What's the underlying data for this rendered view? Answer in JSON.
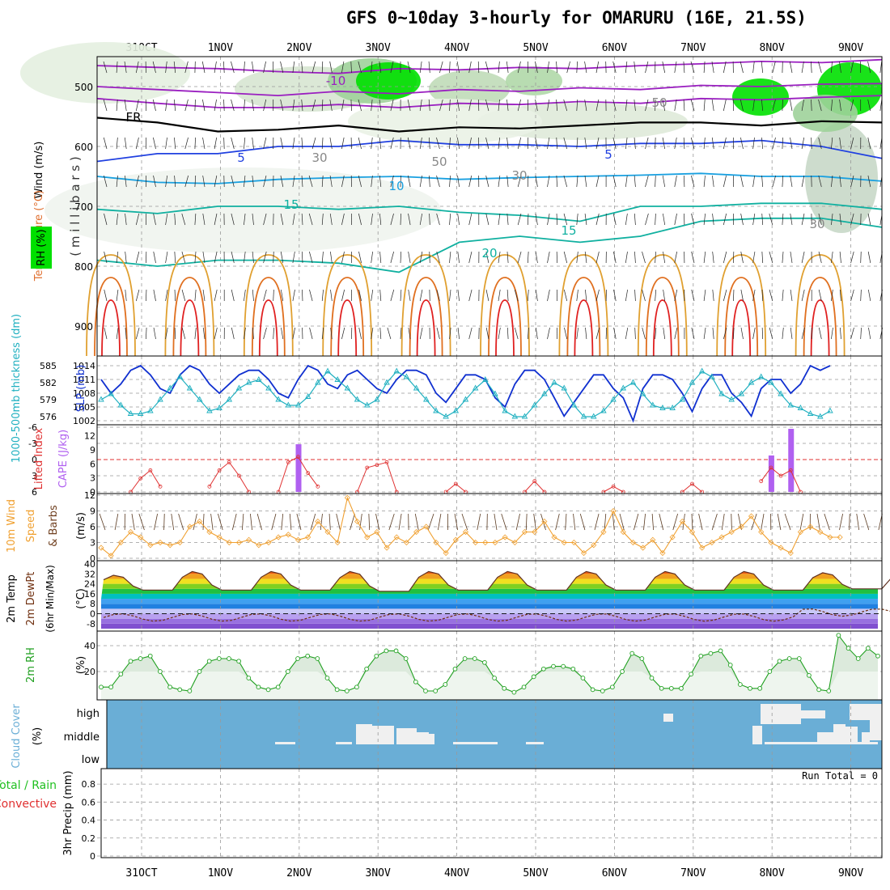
{
  "title": "GFS 0~10day 3-hourly for OMARURU (16E, 21.5S)",
  "x_tick_labels": [
    "31OCT",
    "1NOV",
    "2NOV",
    "3NOV",
    "4NOV",
    "5NOV",
    "6NOV",
    "7NOV",
    "8NOV",
    "9NOV"
  ],
  "colors": {
    "rh_green": "#00e000",
    "temp_purple": "#9a1fc0",
    "temp_blue": "#2040e0",
    "temp_cyan": "#19a0e0",
    "temp_teal": "#10b0a0",
    "temp_orange": "#e0a030",
    "temp_red": "#e02020",
    "slp_blue": "#1030d0",
    "thickness_cyan": "#20b0c0",
    "lifted_index_red": "#e03030",
    "cape_purple": "#b060f0",
    "wind_orange": "#f0a030",
    "dewpt_brown": "#703010",
    "rh_green_line": "#20a020",
    "cloud_blue": "#6aaed6",
    "cloud_white": "#f0f0f0"
  },
  "chart_data": [
    {
      "type": "heatmap",
      "panel": "upper_air",
      "labels": {
        "wind": "Wind (m/s)",
        "temperature": "Temperature (°C)",
        "rh": "RH (%)",
        "ylabel": "( m i l l i b a r s )"
      },
      "y_ticks": [
        500,
        600,
        700,
        800,
        900
      ],
      "ylim": [
        950,
        450
      ],
      "x_days": [
        0,
        1,
        2,
        3,
        4,
        5,
        6,
        7,
        8,
        9
      ],
      "contour_labels": [
        "-10",
        "FR",
        "5",
        "10",
        "15",
        "20",
        "5",
        "15",
        "50",
        "30",
        "30",
        "50",
        "30"
      ],
      "isotherms": [
        {
          "label": "-10",
          "hpa": [
            465,
            468,
            470,
            475,
            478,
            470,
            472,
            468,
            470,
            465,
            462,
            458,
            460,
            455
          ]
        },
        {
          "label": "-10b",
          "hpa": [
            500,
            505,
            510,
            515,
            508,
            512,
            505,
            508,
            502,
            505,
            498,
            500,
            496,
            495
          ]
        },
        {
          "label": "-10c",
          "hpa": [
            520,
            528,
            535,
            535,
            530,
            535,
            528,
            530,
            525,
            528,
            520,
            522,
            518,
            515
          ]
        },
        {
          "label": "FR",
          "hpa": [
            552,
            560,
            575,
            572,
            565,
            575,
            568,
            570,
            565,
            560,
            560,
            565,
            558,
            560
          ]
        },
        {
          "label": "5",
          "hpa": [
            625,
            612,
            612,
            600,
            600,
            590,
            597,
            597,
            600,
            595,
            595,
            590,
            600,
            620
          ]
        },
        {
          "label": "10",
          "hpa": [
            650,
            660,
            662,
            655,
            652,
            650,
            655,
            652,
            650,
            648,
            645,
            650,
            650,
            658
          ]
        },
        {
          "label": "15",
          "hpa": [
            705,
            712,
            700,
            700,
            705,
            700,
            710,
            715,
            725,
            700,
            700,
            695,
            695,
            705
          ]
        },
        {
          "label": "20",
          "hpa": [
            790,
            800,
            790,
            790,
            795,
            810,
            760,
            750,
            760,
            750,
            725,
            720,
            720,
            735
          ]
        }
      ]
    },
    {
      "type": "line",
      "panel": "slp_thickness",
      "labels": {
        "slp": "SLP (mb)",
        "thickness": "1000-500mb thickness (dm)"
      },
      "slp_ticks": [
        1002,
        1005,
        1008,
        1011,
        1014
      ],
      "thickness_ticks": [
        576,
        579,
        582,
        585
      ],
      "x": [
        0,
        0.125,
        0.25,
        0.375,
        0.5,
        0.625,
        0.75,
        0.875,
        1,
        1.125,
        1.25,
        1.375,
        1.5,
        1.625,
        1.75,
        1.875,
        2,
        2.125,
        2.25,
        2.375,
        2.5,
        2.625,
        2.75,
        2.875,
        3,
        3.125,
        3.25,
        3.375,
        3.5,
        3.625,
        3.75,
        3.875,
        4,
        4.125,
        4.25,
        4.375,
        4.5,
        4.625,
        4.75,
        4.875,
        5,
        5.125,
        5.25,
        5.375,
        5.5,
        5.625,
        5.75,
        5.875,
        6,
        6.125,
        6.25,
        6.375,
        6.5,
        6.625,
        6.75,
        6.875,
        7,
        7.125,
        7.25,
        7.375,
        7.5,
        7.625,
        7.75,
        7.875,
        8,
        8.125,
        8.25,
        8.375,
        8.5,
        8.625,
        8.75,
        8.875,
        9,
        9.125,
        9.25
      ],
      "series": [
        {
          "name": "SLP",
          "values": [
            1011,
            1008,
            1010,
            1013,
            1014,
            1012,
            1009,
            1008,
            1012,
            1014,
            1013,
            1010,
            1008,
            1010,
            1012,
            1013,
            1013,
            1011,
            1008,
            1007,
            1011,
            1014,
            1013,
            1010,
            1009,
            1012,
            1013,
            1011,
            1009,
            1008,
            1011,
            1013,
            1013,
            1012,
            1008,
            1006,
            1009,
            1012,
            1012,
            1011,
            1007,
            1005,
            1010,
            1013,
            1013,
            1011,
            1007,
            1003,
            1006,
            1009,
            1012,
            1012,
            1009,
            1007,
            1002,
            1009,
            1012,
            1012,
            1011,
            1008,
            1004,
            1009,
            1012,
            1012,
            1008,
            1006,
            1003,
            1009,
            1011,
            1011,
            1008,
            1010,
            1014,
            1013,
            1014
          ]
        },
        {
          "name": "thickness",
          "values": [
            579,
            580,
            578,
            576.5,
            576.5,
            577,
            579,
            581,
            583,
            581,
            579,
            577,
            577.5,
            579,
            581,
            582,
            582.5,
            581,
            579,
            578,
            578,
            579.5,
            582,
            584,
            582.5,
            581,
            579,
            578,
            579,
            582,
            584,
            583,
            581,
            579,
            577,
            576,
            577,
            579,
            581,
            582.5,
            580,
            577,
            576,
            576,
            578,
            580,
            582,
            581,
            578,
            576,
            576,
            577,
            579,
            581,
            582,
            580,
            578,
            577.5,
            577.5,
            579,
            582,
            584,
            583,
            580,
            579,
            580,
            582,
            583,
            582,
            580,
            578,
            577.5,
            576.5,
            576,
            577
          ]
        }
      ]
    },
    {
      "type": "bar",
      "panel": "lifted_cape",
      "labels": {
        "lifted_index": "Lifted Index",
        "cape": "CAPE (J/kg)"
      },
      "li_ticks": [
        -6,
        -3,
        0,
        3,
        6
      ],
      "cape_ticks": [
        0,
        3,
        6,
        9,
        12
      ],
      "cape_bars": [
        {
          "x": 2.5,
          "value": 10.2
        },
        {
          "x": 8.5,
          "value": 7.8
        },
        {
          "x": 8.75,
          "value": 13.5
        }
      ],
      "lifted_index_segments": [
        {
          "x": [
            0.375,
            0.5,
            0.625,
            0.75
          ],
          "values": [
            6,
            3.5,
            2,
            5
          ]
        },
        {
          "x": [
            1.375,
            1.5,
            1.625,
            1.75,
            1.875
          ],
          "values": [
            5,
            2,
            0.5,
            3,
            6
          ]
        },
        {
          "x": [
            2.25,
            2.375,
            2.5,
            2.625,
            2.75
          ],
          "values": [
            6,
            0.5,
            -0.5,
            2.5,
            5
          ]
        },
        {
          "x": [
            3.25,
            3.375,
            3.5,
            3.625,
            3.75
          ],
          "values": [
            6,
            1.5,
            1,
            0.5,
            6
          ]
        },
        {
          "x": [
            4.375,
            4.5,
            4.625
          ],
          "values": [
            6,
            4.5,
            6
          ]
        },
        {
          "x": [
            5.375,
            5.5,
            5.625
          ],
          "values": [
            6,
            4,
            6
          ]
        },
        {
          "x": [
            6.375,
            6.5,
            6.625
          ],
          "values": [
            6,
            5,
            6
          ]
        },
        {
          "x": [
            7.375,
            7.5,
            7.625
          ],
          "values": [
            6,
            4.5,
            6
          ]
        },
        {
          "x": [
            8.375,
            8.5,
            8.625,
            8.75,
            8.875
          ],
          "values": [
            4,
            1.5,
            3,
            2,
            6
          ]
        }
      ]
    },
    {
      "type": "line",
      "panel": "wind10m",
      "labels": {
        "wind": "10m Wind",
        "speed": "Speed",
        "units": "(m/s)",
        "barbs": "& Barbs"
      },
      "y_ticks": [
        0,
        3,
        6,
        9,
        12
      ],
      "x_step": 0.125,
      "values": [
        2,
        0.5,
        3,
        5,
        4,
        2.5,
        3,
        2.5,
        3,
        6,
        7,
        5,
        4,
        3,
        3,
        3.5,
        2.5,
        3,
        4,
        4.5,
        3.5,
        4,
        7,
        5,
        3,
        11.5,
        7,
        4,
        5,
        2,
        4,
        3,
        5,
        6,
        3,
        1,
        3.5,
        5,
        3,
        3,
        3,
        4,
        3,
        5,
        5,
        7,
        4,
        3,
        3,
        1,
        2.5,
        5,
        9,
        5,
        3,
        2,
        3.5,
        1,
        4,
        7,
        5,
        2,
        3,
        4,
        5,
        6,
        8,
        5,
        3,
        2,
        1,
        5,
        6,
        5,
        4,
        4
      ]
    },
    {
      "type": "area",
      "panel": "temp2m",
      "labels": {
        "temp": "2m Temp",
        "dewpt": "2m DewPt",
        "minmax": "(6hr Min/Max)",
        "units": "(°C)"
      },
      "y_ticks": [
        -8,
        0,
        8,
        16,
        24,
        32,
        40
      ],
      "max_temps_daily": [
        31,
        34,
        34,
        34,
        34,
        34,
        34,
        34,
        34,
        33
      ],
      "min_temps_daily": [
        19,
        19,
        19,
        18,
        19,
        19,
        19,
        19,
        19,
        20
      ]
    },
    {
      "type": "area",
      "panel": "rh2m",
      "labels": {
        "rh": "2m RH",
        "units": "(%)"
      },
      "y_ticks": [
        20,
        40
      ],
      "values": [
        8,
        8,
        18,
        28,
        30,
        32,
        20,
        8,
        6,
        5,
        20,
        28,
        30,
        30,
        28,
        15,
        8,
        6,
        8,
        20,
        30,
        32,
        30,
        15,
        6,
        5,
        8,
        22,
        32,
        36,
        36,
        30,
        12,
        5,
        5,
        10,
        22,
        30,
        30,
        27,
        15,
        7,
        4,
        8,
        16,
        22,
        24,
        24,
        22,
        15,
        6,
        5,
        8,
        20,
        34,
        30,
        15,
        7,
        7,
        7,
        18,
        32,
        34,
        36,
        25,
        10,
        7,
        7,
        20,
        28,
        30,
        30,
        17,
        6,
        5,
        48,
        38,
        30,
        38,
        32
      ]
    },
    {
      "type": "heatmap",
      "panel": "cloud",
      "labels": {
        "title": "Cloud Cover",
        "units": "(%)",
        "high": "high",
        "middle": "middle",
        "low": "low"
      }
    },
    {
      "type": "bar",
      "panel": "precip",
      "labels": {
        "title": "3hr Precip (mm)",
        "legend_total": "Total / Rain",
        "legend_convective": "Convective",
        "run_total": "Run Total = 0"
      },
      "y_ticks": [
        0,
        0.2,
        0.4,
        0.6,
        0.8
      ],
      "values": []
    }
  ]
}
